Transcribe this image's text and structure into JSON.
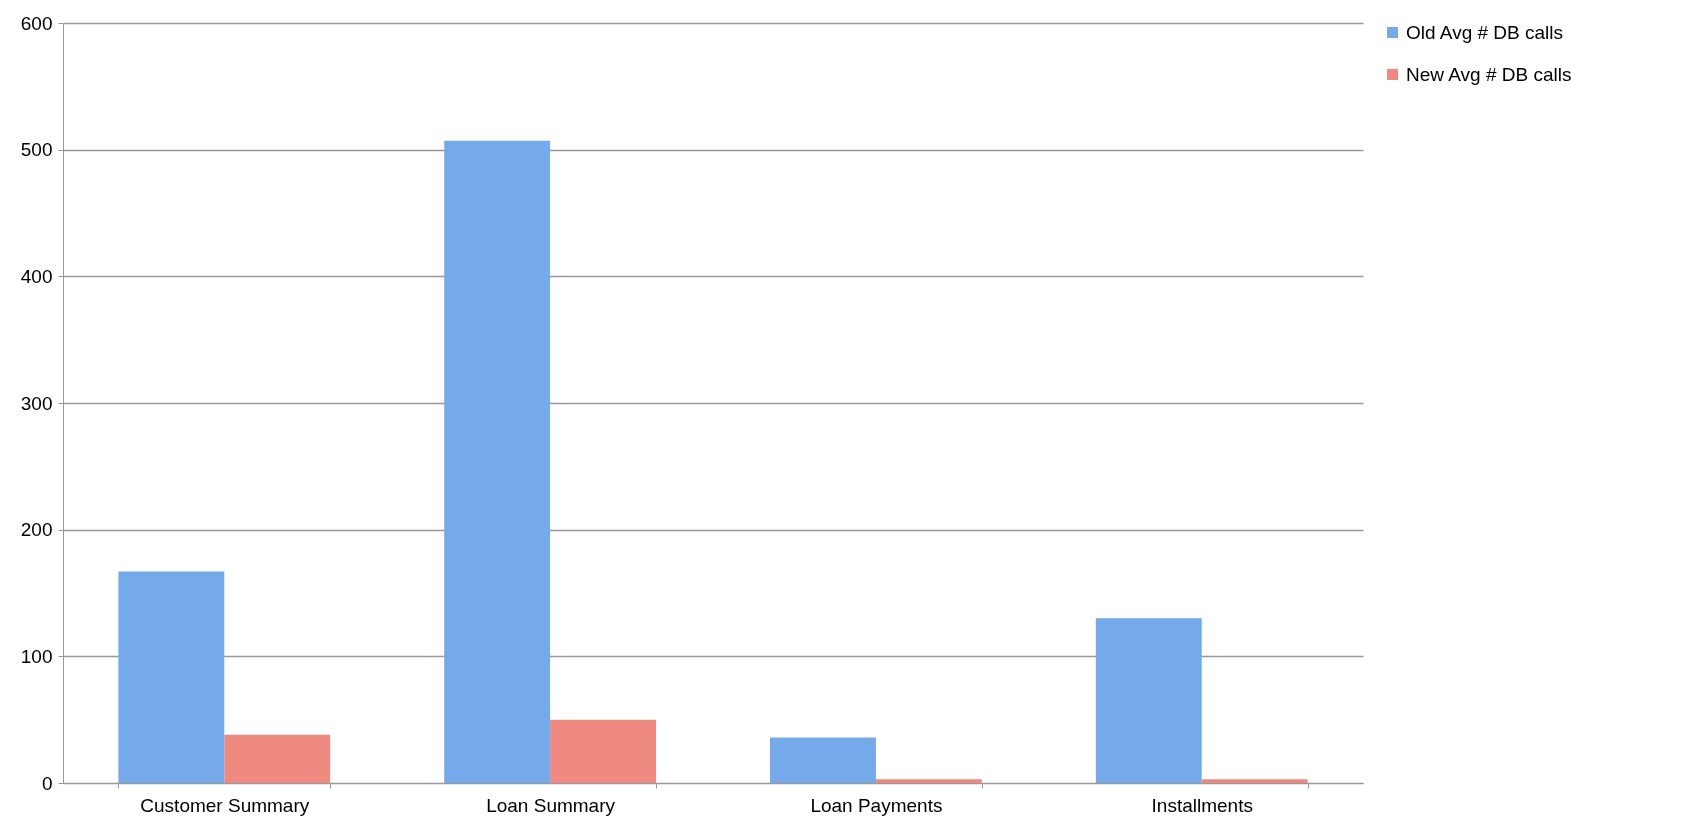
{
  "chart_data": {
    "type": "bar",
    "categories": [
      "Customer Summary",
      "Loan Summary",
      "Loan Payments",
      "Installments"
    ],
    "series": [
      {
        "name": "Old Avg # DB calls",
        "color": "#74a9ea",
        "values": [
          167,
          507,
          36,
          130
        ]
      },
      {
        "name": "New Avg # DB calls",
        "color": "#ef8a80",
        "values": [
          38,
          50,
          3,
          3
        ]
      }
    ],
    "ylim": [
      0,
      600
    ],
    "yticks": [
      0,
      100,
      200,
      300,
      400,
      500,
      600
    ],
    "grid": "y",
    "legend": "right"
  }
}
